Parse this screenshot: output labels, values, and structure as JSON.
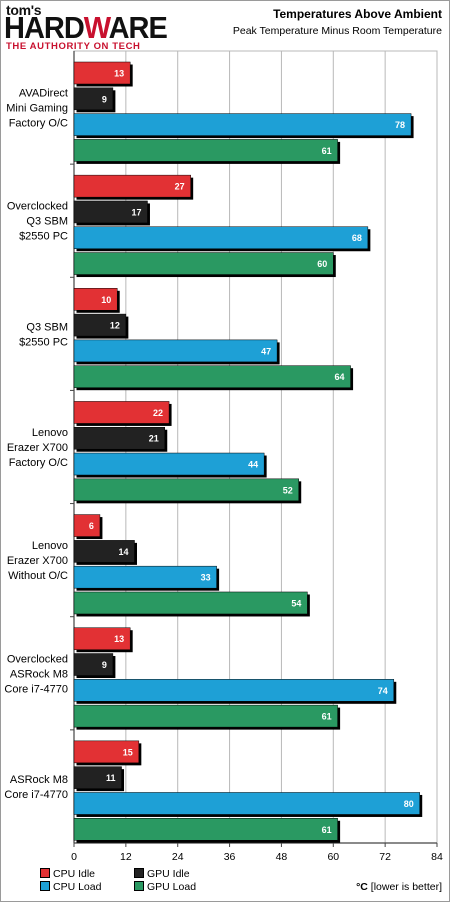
{
  "brand": {
    "toms": "tom's",
    "hardware_pre": "HARD",
    "hardware_accent": "W",
    "hardware_post": "ARE",
    "tagline": "THE AUTHORITY ON TECH"
  },
  "chart_data": {
    "type": "bar",
    "orientation": "horizontal",
    "title": "Temperatures Above Ambient",
    "subtitle": "Peak Temperature Minus Room Temperature",
    "categories": [
      [
        "AVADirect",
        "Mini Gaming",
        "Factory O/C"
      ],
      [
        "Overclocked",
        "Q3 SBM",
        "$2550 PC"
      ],
      [
        "Q3 SBM",
        "$2550 PC"
      ],
      [
        "Lenovo",
        "Erazer X700",
        "Factory O/C"
      ],
      [
        "Lenovo",
        "Erazer X700",
        "Without O/C"
      ],
      [
        "Overclocked",
        "ASRock M8",
        "Core i7-4770"
      ],
      [
        "ASRock M8",
        "Core i7-4770"
      ]
    ],
    "series": [
      {
        "name": "CPU Idle",
        "color": "#e23134",
        "values": [
          13,
          27,
          10,
          22,
          6,
          13,
          15
        ]
      },
      {
        "name": "GPU Idle",
        "color": "#222222",
        "values": [
          9,
          17,
          12,
          21,
          14,
          9,
          11
        ]
      },
      {
        "name": "CPU Load",
        "color": "#1ea0d6",
        "values": [
          78,
          68,
          47,
          44,
          33,
          74,
          80
        ]
      },
      {
        "name": "GPU Load",
        "color": "#2a9962",
        "values": [
          61,
          60,
          64,
          52,
          54,
          61,
          61
        ]
      }
    ],
    "xlim": [
      0,
      84
    ],
    "xticks": [
      0,
      12,
      24,
      36,
      48,
      60,
      72,
      84
    ],
    "grid": true,
    "unit_symbol": "°C",
    "unit_note": "[lower is better]"
  }
}
